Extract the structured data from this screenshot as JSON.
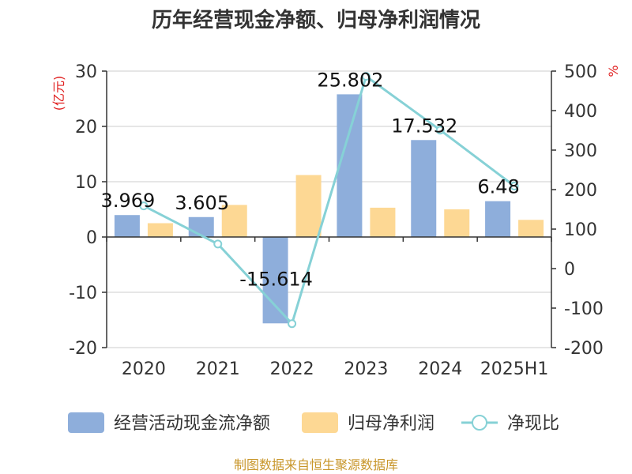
{
  "chart_data": {
    "type": "bar",
    "title": "历年经营现金净额、归母净利润情况",
    "categories": [
      "2020",
      "2021",
      "2022",
      "2023",
      "2024",
      "2025H1"
    ],
    "left_unit": "(亿元)",
    "right_unit": "%",
    "left_ylim": [
      -20,
      30
    ],
    "left_ticks": [
      "30",
      "20",
      "10",
      "0",
      "-10",
      "-20"
    ],
    "right_ylim": [
      -200,
      500
    ],
    "right_ticks": [
      "500",
      "400",
      "300",
      "200",
      "100",
      "0",
      "-100",
      "-200"
    ],
    "series": [
      {
        "name": "经营活动现金流净额",
        "type": "bar",
        "axis": "left",
        "color": "#8eaedb",
        "values": [
          3.969,
          3.605,
          -15.614,
          25.802,
          17.532,
          6.48
        ],
        "labels": [
          "3.969",
          "3.605",
          "-15.614",
          "25.802",
          "17.532",
          "6.48"
        ]
      },
      {
        "name": "归母净利润",
        "type": "bar",
        "axis": "left",
        "color": "#fdd894",
        "values": [
          2.5,
          5.8,
          11.2,
          5.3,
          5.0,
          3.1
        ]
      },
      {
        "name": "净现比",
        "type": "line",
        "axis": "right",
        "color": "#86d1d6",
        "values": [
          158.8,
          62.2,
          -139.4,
          486.8,
          350.6,
          209.0
        ]
      }
    ],
    "grid": true,
    "legend_position": "bottom"
  },
  "source": "制图数据来自恒生聚源数据库"
}
